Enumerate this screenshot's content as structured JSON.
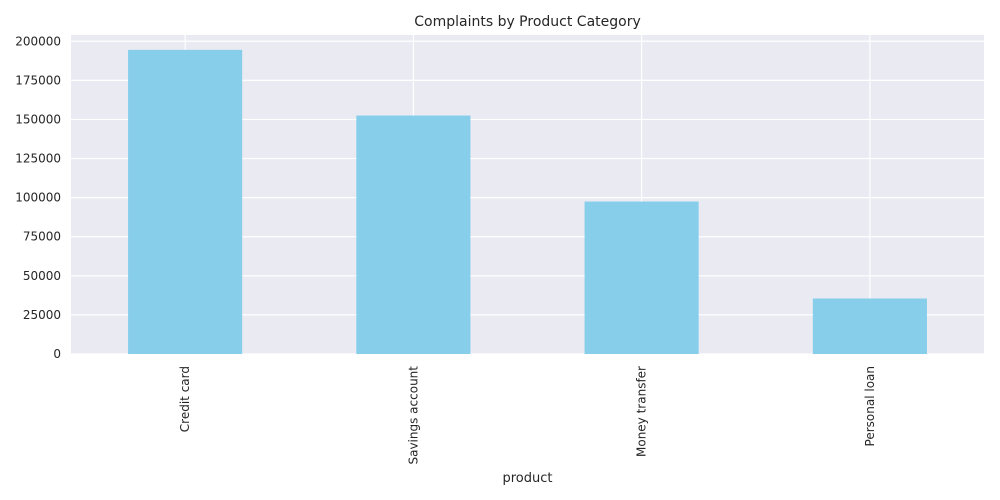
{
  "chart_data": {
    "type": "bar",
    "title": "Complaints by Product Category",
    "xlabel": "product",
    "ylabel": "",
    "categories": [
      "Credit card",
      "Savings account",
      "Money transfer",
      "Personal loan"
    ],
    "values": [
      194500,
      152500,
      97500,
      35500
    ],
    "ylim": [
      0,
      204000
    ],
    "yticks": [
      0,
      25000,
      50000,
      75000,
      100000,
      125000,
      150000,
      175000,
      200000
    ],
    "ytick_labels": [
      "0",
      "25000",
      "50000",
      "75000",
      "100000",
      "125000",
      "150000",
      "175000",
      "200000"
    ],
    "grid": true,
    "legend": "none",
    "colors": {
      "bar": "#87ceeb",
      "plot_background": "#eaeaf2",
      "grid": "#ffffff",
      "text": "#262626"
    }
  }
}
